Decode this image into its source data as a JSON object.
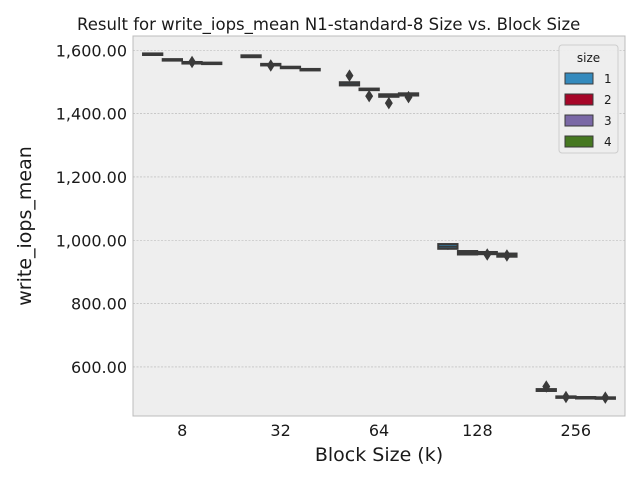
{
  "chart_data": {
    "type": "box",
    "title": "Result for write_iops_mean N1-standard-8 Size vs. Block Size",
    "xlabel": "Block Size (k)",
    "ylabel": "write_iops_mean",
    "categories": [
      "8",
      "32",
      "64",
      "128",
      "256"
    ],
    "ylim": [
      445,
      1645
    ],
    "yticks": [
      600,
      800,
      1000,
      1200,
      1400,
      1600
    ],
    "ytick_labels": [
      "600.00",
      "800.00",
      "1,000.00",
      "1,200.00",
      "1,400.00",
      "1,600.00"
    ],
    "grid": true,
    "legend": {
      "title": "size",
      "placement": "top-right"
    },
    "series": [
      {
        "name": "1",
        "color": "#348ABD",
        "boxes": [
          {
            "q1": 1585,
            "median": 1587,
            "q3": 1590,
            "whislo": 1583,
            "whishi": 1592,
            "fliers": []
          },
          {
            "q1": 1578,
            "median": 1581,
            "q3": 1584,
            "whislo": 1576,
            "whishi": 1585,
            "fliers": []
          },
          {
            "q1": 1489,
            "median": 1493,
            "q3": 1499,
            "whislo": 1487,
            "whishi": 1500,
            "fliers": [
              1520
            ]
          },
          {
            "q1": 973,
            "median": 980,
            "q3": 988,
            "whislo": 970,
            "whishi": 990,
            "fliers": []
          },
          {
            "q1": 524,
            "median": 527,
            "q3": 530,
            "whislo": 522,
            "whishi": 532,
            "fliers": [
              538
            ]
          }
        ]
      },
      {
        "name": "2",
        "color": "#A60628",
        "boxes": [
          {
            "q1": 1568,
            "median": 1570,
            "q3": 1572,
            "whislo": 1566,
            "whishi": 1573,
            "fliers": []
          },
          {
            "q1": 1552,
            "median": 1555,
            "q3": 1557,
            "whislo": 1549,
            "whishi": 1559,
            "fliers": [
              1552
            ]
          },
          {
            "q1": 1474,
            "median": 1476,
            "q3": 1479,
            "whislo": 1471,
            "whishi": 1480,
            "fliers": [
              1455
            ]
          },
          {
            "q1": 955,
            "median": 960,
            "q3": 966,
            "whislo": 952,
            "whishi": 968,
            "fliers": []
          },
          {
            "q1": 503,
            "median": 505,
            "q3": 507,
            "whislo": 501,
            "whishi": 508,
            "fliers": [
              505
            ]
          }
        ]
      },
      {
        "name": "3",
        "color": "#7A68A6",
        "boxes": [
          {
            "q1": 1558,
            "median": 1561,
            "q3": 1563,
            "whislo": 1556,
            "whishi": 1565,
            "fliers": [
              1563
            ]
          },
          {
            "q1": 1544,
            "median": 1546,
            "q3": 1548,
            "whislo": 1542,
            "whishi": 1549,
            "fliers": []
          },
          {
            "q1": 1453,
            "median": 1457,
            "q3": 1461,
            "whislo": 1450,
            "whishi": 1463,
            "fliers": [
              1433
            ]
          },
          {
            "q1": 956,
            "median": 960,
            "q3": 963,
            "whislo": 953,
            "whishi": 965,
            "fliers": [
              955
            ]
          },
          {
            "q1": 502,
            "median": 503,
            "q3": 505,
            "whislo": 500,
            "whishi": 506,
            "fliers": []
          }
        ]
      },
      {
        "name": "4",
        "color": "#467821",
        "boxes": [
          {
            "q1": 1557,
            "median": 1559,
            "q3": 1561,
            "whislo": 1555,
            "whishi": 1562,
            "fliers": []
          },
          {
            "q1": 1537,
            "median": 1539,
            "q3": 1541,
            "whislo": 1535,
            "whishi": 1542,
            "fliers": []
          },
          {
            "q1": 1457,
            "median": 1460,
            "q3": 1464,
            "whislo": 1455,
            "whishi": 1466,
            "fliers": [
              1452
            ]
          },
          {
            "q1": 948,
            "median": 954,
            "q3": 958,
            "whislo": 945,
            "whishi": 960,
            "fliers": [
              952
            ]
          },
          {
            "q1": 500,
            "median": 502,
            "q3": 504,
            "whislo": 498,
            "whishi": 505,
            "fliers": [
              503
            ]
          }
        ]
      }
    ]
  }
}
